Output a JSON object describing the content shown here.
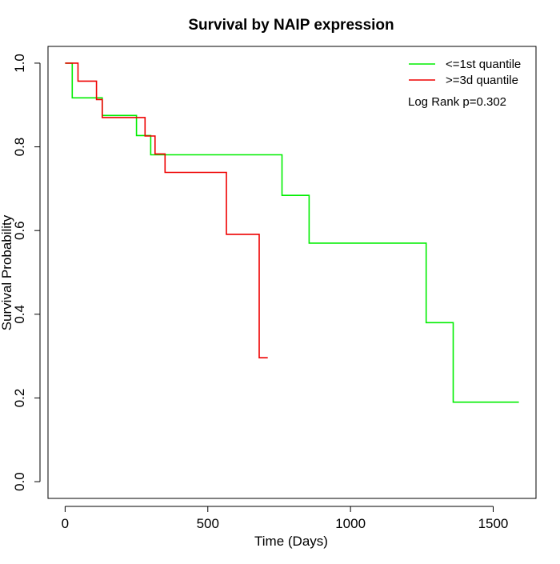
{
  "chart_data": {
    "type": "line",
    "title": "Survival by NAIP expression",
    "xlabel": "Time (Days)",
    "ylabel": "Survival Probability",
    "xlim": [
      -60,
      1650
    ],
    "ylim": [
      -0.04,
      1.04
    ],
    "xticks": [
      0,
      500,
      1000,
      1500
    ],
    "yticks": [
      0.0,
      0.2,
      0.4,
      0.6,
      0.8,
      1.0
    ],
    "ytick_labels": [
      "0.0",
      "0.2",
      "0.4",
      "0.6",
      "0.8",
      "1.0"
    ],
    "grid": false,
    "legend_position": "top-right",
    "annotation": "Log Rank p=0.302",
    "series": [
      {
        "name": "<=1st quantile",
        "color": "#00ee00",
        "x": [
          0,
          25,
          25,
          130,
          130,
          250,
          250,
          300,
          300,
          760,
          760,
          855,
          855,
          1265,
          1265,
          1360,
          1360,
          1590
        ],
        "y": [
          1.0,
          1.0,
          0.917,
          0.917,
          0.875,
          0.875,
          0.827,
          0.827,
          0.781,
          0.781,
          0.684,
          0.684,
          0.57,
          0.57,
          0.38,
          0.38,
          0.19,
          0.19
        ]
      },
      {
        "name": ">=3d quantile",
        "color": "#ee0000",
        "x": [
          0,
          45,
          45,
          110,
          110,
          130,
          130,
          280,
          280,
          315,
          315,
          350,
          350,
          565,
          565,
          680,
          680,
          710
        ],
        "y": [
          1.0,
          1.0,
          0.957,
          0.957,
          0.913,
          0.913,
          0.87,
          0.87,
          0.826,
          0.826,
          0.783,
          0.783,
          0.739,
          0.739,
          0.591,
          0.591,
          0.296,
          0.296
        ]
      }
    ]
  }
}
